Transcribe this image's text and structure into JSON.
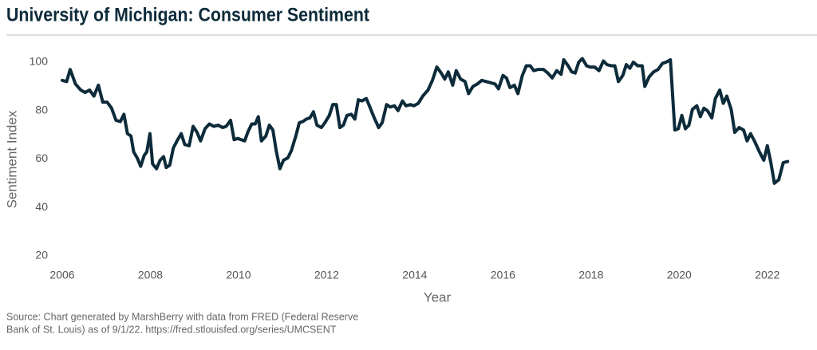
{
  "chart_data": {
    "type": "line",
    "title": "University of Michigan: Consumer Sentiment",
    "x_label": "Year",
    "y_label": "Sentiment Index",
    "source": [
      "Source: Chart generated by MarshBerry with data from FRED (Federal Reserve",
      "Bank of St. Louis) as of 9/1/22. https://fred.stlouisfed.org/series/UMCSENT"
    ],
    "color": "#0d2b3a",
    "xlim": [
      2006,
      2023
    ],
    "xticks": [
      2006,
      2008,
      2010,
      2012,
      2014,
      2016,
      2018,
      2020,
      2022
    ],
    "ylim": [
      20,
      100
    ],
    "yticks": [
      20,
      40,
      60,
      80,
      100
    ],
    "grid": false,
    "x": [
      2006.0,
      2006.1,
      2006.18,
      2006.3,
      2006.42,
      2006.52,
      2006.62,
      2006.72,
      2006.82,
      2006.92,
      2007.02,
      2007.12,
      2007.22,
      2007.32,
      2007.4,
      2007.48,
      2007.56,
      2007.62,
      2007.7,
      2007.78,
      2007.86,
      2007.92,
      2007.99,
      2008.05,
      2008.14,
      2008.22,
      2008.3,
      2008.36,
      2008.44,
      2008.52,
      2008.62,
      2008.7,
      2008.78,
      2008.88,
      2008.97,
      2009.06,
      2009.14,
      2009.24,
      2009.34,
      2009.44,
      2009.54,
      2009.64,
      2009.72,
      2009.82,
      2009.9,
      2009.98,
      2010.06,
      2010.14,
      2010.22,
      2010.3,
      2010.38,
      2010.45,
      2010.52,
      2010.62,
      2010.7,
      2010.78,
      2010.86,
      2010.94,
      2011.02,
      2011.12,
      2011.2,
      2011.3,
      2011.38,
      2011.46,
      2011.54,
      2011.62,
      2011.7,
      2011.78,
      2011.88,
      2011.96,
      2012.06,
      2012.14,
      2012.22,
      2012.3,
      2012.38,
      2012.46,
      2012.56,
      2012.64,
      2012.72,
      2012.8,
      2012.9,
      2012.98,
      2013.08,
      2013.18,
      2013.26,
      2013.36,
      2013.44,
      2013.54,
      2013.62,
      2013.72,
      2013.8,
      2013.9,
      2013.98,
      2014.08,
      2014.18,
      2014.3,
      2014.4,
      2014.5,
      2014.6,
      2014.68,
      2014.76,
      2014.86,
      2014.94,
      2015.04,
      2015.14,
      2015.22,
      2015.32,
      2015.42,
      2015.52,
      2015.62,
      2015.72,
      2015.82,
      2015.9,
      2016.0,
      2016.08,
      2016.16,
      2016.26,
      2016.34,
      2016.44,
      2016.53,
      2016.62,
      2016.7,
      2016.8,
      2016.92,
      2017.02,
      2017.12,
      2017.22,
      2017.32,
      2017.38,
      2017.48,
      2017.56,
      2017.64,
      2017.72,
      2017.8,
      2017.9,
      2017.98,
      2018.08,
      2018.18,
      2018.28,
      2018.36,
      2018.46,
      2018.54,
      2018.62,
      2018.72,
      2018.8,
      2018.88,
      2018.96,
      2019.06,
      2019.16,
      2019.22,
      2019.32,
      2019.42,
      2019.52,
      2019.62,
      2019.7,
      2019.8,
      2019.9,
      2019.98,
      2020.06,
      2020.14,
      2020.22,
      2020.3,
      2020.4,
      2020.48,
      2020.56,
      2020.64,
      2020.74,
      2020.82,
      2020.92,
      2021.0,
      2021.08,
      2021.18,
      2021.26,
      2021.36,
      2021.46,
      2021.54,
      2021.62,
      2021.72,
      2021.82,
      2021.92,
      2022.0,
      2022.08,
      2022.16,
      2022.26,
      2022.36,
      2022.46
    ],
    "values": [
      92.5,
      92,
      97,
      91,
      88.5,
      87.5,
      88.5,
      86,
      90.5,
      83.5,
      83.5,
      81,
      76,
      75.5,
      78.5,
      70.5,
      69.5,
      63,
      60.5,
      57,
      61.5,
      63,
      70.5,
      58,
      56,
      59.5,
      61,
      56.5,
      57.5,
      64.5,
      68,
      70.5,
      66,
      65.5,
      73.5,
      71,
      67.5,
      72.5,
      74.5,
      73.5,
      74,
      73,
      73.5,
      76,
      68,
      68.5,
      68,
      67.5,
      71.5,
      74.5,
      74.5,
      77.5,
      67.5,
      69.5,
      74,
      72,
      63,
      56,
      59.5,
      60.5,
      63.5,
      69.5,
      75,
      75.5,
      76.5,
      77,
      79.5,
      74,
      73,
      75,
      78,
      82.5,
      82.5,
      73,
      74,
      78,
      78.5,
      76.5,
      84.5,
      84,
      85,
      81.5,
      77,
      73,
      75,
      82.5,
      81.5,
      82,
      80,
      84,
      82,
      82.5,
      82,
      83,
      86,
      88.5,
      92.5,
      98,
      95.5,
      93,
      96,
      90.5,
      96.5,
      93,
      92,
      87,
      90,
      91,
      92.5,
      92,
      91.5,
      91,
      89,
      94.5,
      93.5,
      89.5,
      90.5,
      87,
      94.5,
      98.5,
      98.5,
      96.5,
      97,
      97,
      95.5,
      93.5,
      96.5,
      95,
      101,
      98.5,
      96,
      95.5,
      100,
      101.5,
      98.5,
      98,
      98,
      96.5,
      100.5,
      99,
      98.5,
      98.5,
      92,
      94.5,
      99,
      97.5,
      100,
      98.5,
      98.5,
      90,
      94,
      96,
      97,
      99.5,
      100,
      101,
      72,
      72.5,
      78,
      72.5,
      74,
      80.5,
      82,
      77.5,
      81,
      80,
      77,
      85,
      88.5,
      83,
      86,
      80.5,
      71,
      73,
      72,
      67.5,
      70.5,
      67,
      63,
      59.5,
      65.5,
      58.5,
      50,
      51.5,
      58.5,
      59
    ]
  }
}
